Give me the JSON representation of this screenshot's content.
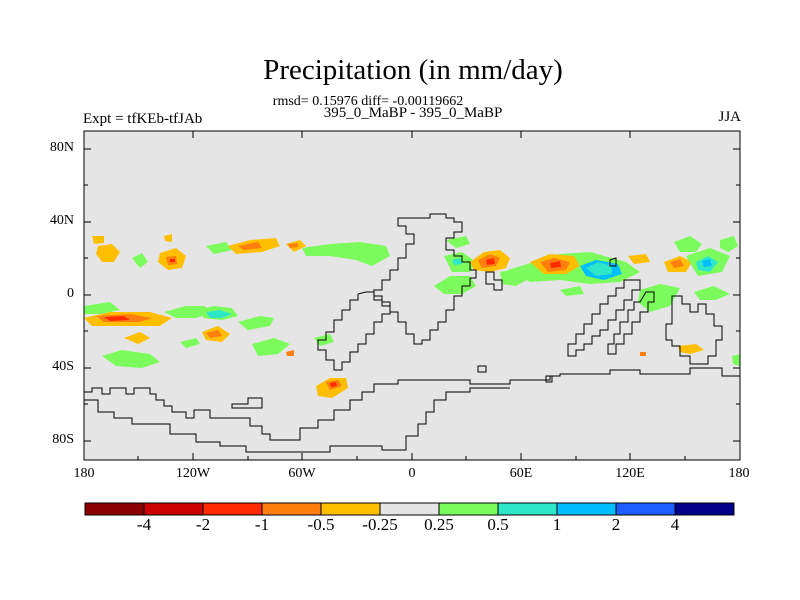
{
  "title": "Precipitation (in mm/day)",
  "stats": "rmsd= 0.15976 diff= -0.00119662",
  "subtitle": "395_0_MaBP - 395_0_MaBP",
  "expt_label": "Expt = tfKEb-tfJAb",
  "season": "JJA",
  "lat_labels": [
    "80N",
    "40N",
    "0",
    "40S",
    "80S"
  ],
  "lon_labels": [
    "180",
    "120W",
    "60W",
    "0",
    "60E",
    "120E",
    "180"
  ],
  "colorbar": {
    "colors": [
      "#8b0000",
      "#cd0000",
      "#ff2a00",
      "#ff7f0e",
      "#ffbf00",
      "#e5e5e5",
      "#7cfc5c",
      "#2ee6c8",
      "#00bfff",
      "#1e5eff",
      "#00008b"
    ],
    "labels": [
      "-4",
      "-2",
      "-1",
      "-0.5",
      "-0.25",
      "0.25",
      "0.5",
      "1",
      "2",
      "4"
    ]
  },
  "background_color": "#e5e5e5"
}
